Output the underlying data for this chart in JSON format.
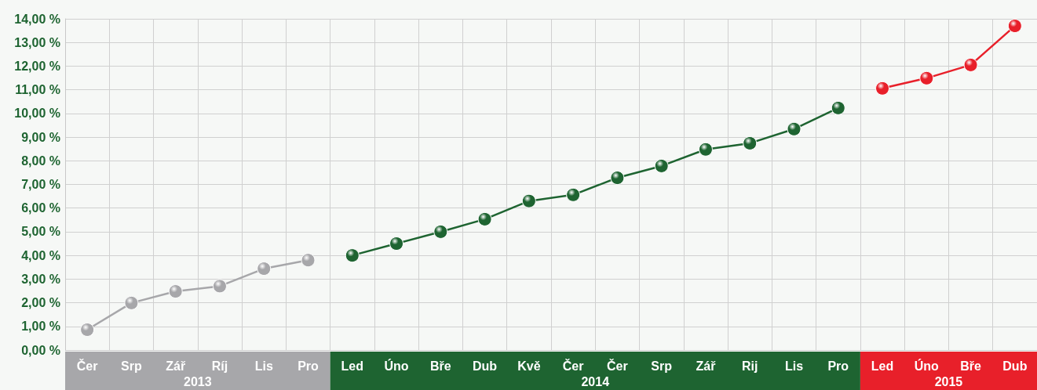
{
  "chart_data": {
    "type": "line",
    "categories": [
      "Čer",
      "Srp",
      "Zář",
      "Ríj",
      "Lis",
      "Pro",
      "Led",
      "Úno",
      "Bře",
      "Dub",
      "Kvě",
      "Čer",
      "Čer",
      "Srp",
      "Zář",
      "Rij",
      "Lis",
      "Pro",
      "Led",
      "Úno",
      "Bře",
      "Dub"
    ],
    "series": [
      {
        "name": "2013",
        "color": "#a7a7aa",
        "values": [
          0.86,
          1.99,
          2.48,
          2.7,
          3.44,
          3.8,
          null,
          null,
          null,
          null,
          null,
          null,
          null,
          null,
          null,
          null,
          null,
          null,
          null,
          null,
          null,
          null
        ]
      },
      {
        "name": "2014",
        "color": "#1e6431",
        "values": [
          null,
          null,
          null,
          null,
          null,
          null,
          4.0,
          4.5,
          5.0,
          5.53,
          6.3,
          6.56,
          7.28,
          7.78,
          8.48,
          8.74,
          9.34,
          10.23,
          null,
          null,
          null,
          null
        ]
      },
      {
        "name": "2015",
        "color": "#e8202a",
        "values": [
          null,
          null,
          null,
          null,
          null,
          null,
          null,
          null,
          null,
          null,
          null,
          null,
          null,
          null,
          null,
          null,
          null,
          null,
          11.06,
          11.49,
          12.05,
          13.7
        ]
      }
    ],
    "ylim": [
      0,
      14
    ],
    "yticks": [
      {
        "value": 0,
        "label": "0,00 %"
      },
      {
        "value": 1,
        "label": "1,00 %"
      },
      {
        "value": 2,
        "label": "2,00 %"
      },
      {
        "value": 3,
        "label": "3,00 %"
      },
      {
        "value": 4,
        "label": "4,00 %"
      },
      {
        "value": 5,
        "label": "5,00 %"
      },
      {
        "value": 6,
        "label": "6,00 %"
      },
      {
        "value": 7,
        "label": "7,00 %"
      },
      {
        "value": 8,
        "label": "8,00 %"
      },
      {
        "value": 9,
        "label": "9,00 %"
      },
      {
        "value": 10,
        "label": "10,00 %"
      },
      {
        "value": 11,
        "label": "11,00 %"
      },
      {
        "value": 12,
        "label": "12,00 %"
      },
      {
        "value": 13,
        "label": "13,00 %"
      },
      {
        "value": 14,
        "label": "14,00 %"
      }
    ],
    "grid": true,
    "marker": "circle",
    "line_style": "solid",
    "legend": false
  }
}
